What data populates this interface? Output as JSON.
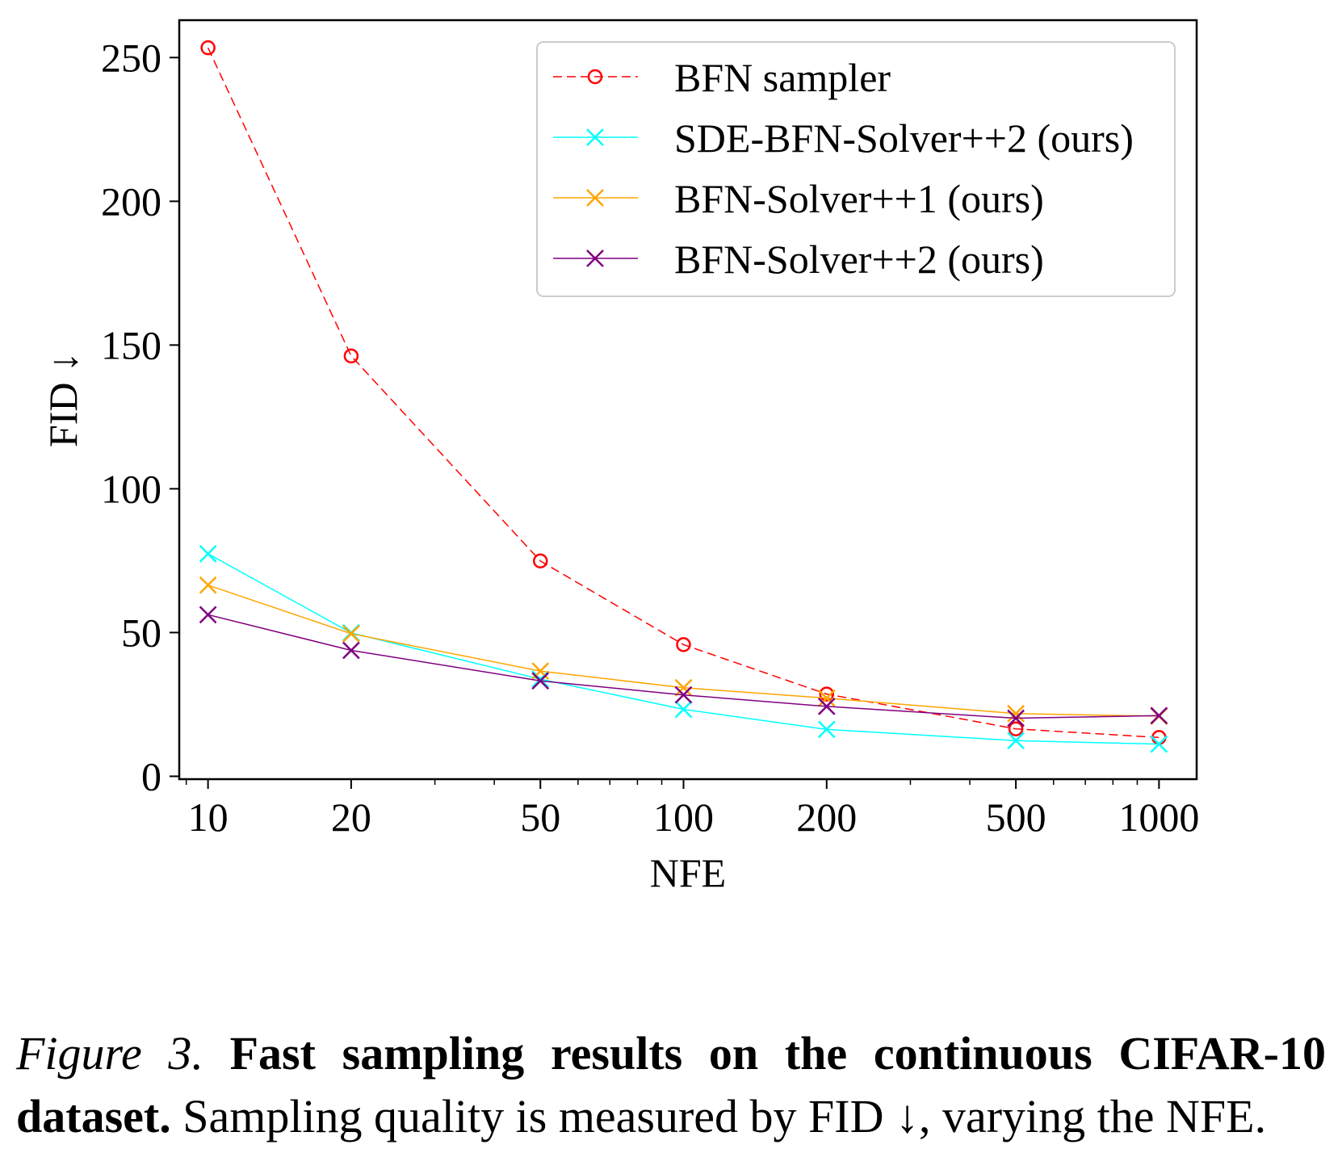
{
  "chart_data": {
    "type": "line",
    "xlabel": "NFE",
    "ylabel": "FID ↓",
    "xscale": "log",
    "xlim": [
      8.7,
      1200
    ],
    "ylim": [
      -1,
      263
    ],
    "xticks": [
      10,
      20,
      50,
      100,
      200,
      500,
      1000
    ],
    "xtick_labels": [
      "10",
      "20",
      "50",
      "100",
      "200",
      "500",
      "1000"
    ],
    "yticks": [
      0,
      50,
      100,
      150,
      200,
      250
    ],
    "ytick_labels": [
      "0",
      "50",
      "100",
      "150",
      "200",
      "250"
    ],
    "grid": false,
    "legend_position": "top-right",
    "x": [
      10,
      20,
      50,
      100,
      200,
      500,
      1000
    ],
    "series": [
      {
        "name": "BFN sampler",
        "color": "#ff0000",
        "marker": "circle",
        "linestyle": "dashed",
        "values": [
          253.4,
          146.2,
          74.9,
          45.8,
          28.6,
          16.5,
          13.5
        ]
      },
      {
        "name": "SDE-BFN-Solver++2 (ours)",
        "color": "#00ffff",
        "marker": "x",
        "linestyle": "solid",
        "values": [
          77.4,
          49.9,
          33.8,
          23.3,
          16.3,
          12.4,
          11.2
        ]
      },
      {
        "name": "BFN-Solver++1 (ours)",
        "color": "#ffa500",
        "marker": "x",
        "linestyle": "solid",
        "values": [
          66.5,
          49.6,
          36.6,
          30.8,
          27.2,
          21.8,
          20.9
        ]
      },
      {
        "name": "BFN-Solver++2 (ours)",
        "color": "#800080",
        "marker": "x",
        "linestyle": "solid",
        "values": [
          56.2,
          43.8,
          33.2,
          28.3,
          24.3,
          20.2,
          21.1
        ]
      }
    ]
  },
  "caption": {
    "figure_label": "Figure 3.",
    "bold_text": "Fast sampling results on the continuous CIFAR-10 dataset.",
    "rest_text": "Sampling quality is measured by FID ↓, varying the NFE."
  }
}
